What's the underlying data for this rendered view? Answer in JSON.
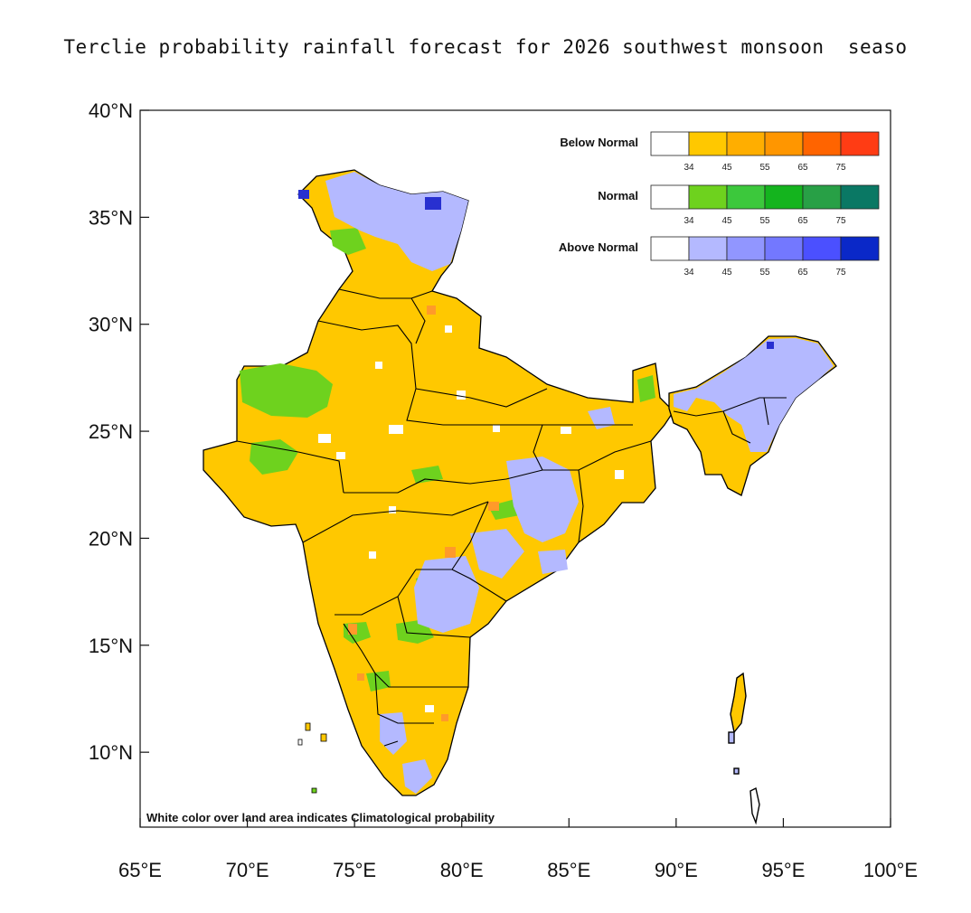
{
  "title": "Terclie probability rainfall forecast for 2026 southwest monsoon  seaso",
  "note": "White color over land area indicates Climatological probability",
  "axes": {
    "x_ticks": [
      "65°E",
      "70°E",
      "75°E",
      "80°E",
      "85°E",
      "90°E",
      "95°E",
      "100°E"
    ],
    "y_ticks": [
      "40°N",
      "35°N",
      "30°N",
      "25°N",
      "20°N",
      "15°N",
      "10°N"
    ],
    "lon_range": [
      65,
      100
    ],
    "lat_range": [
      6.5,
      40
    ]
  },
  "legend": [
    {
      "label": "Below Normal",
      "colors": [
        "#ffffff",
        "#ffc800",
        "#ffae00",
        "#ff9600",
        "#ff6400",
        "#ff3c14"
      ],
      "ticks": [
        "34",
        "45",
        "55",
        "65",
        "75"
      ]
    },
    {
      "label": "Normal",
      "colors": [
        "#ffffff",
        "#6ed21e",
        "#3cc83c",
        "#14b41e",
        "#28a046",
        "#0a7864"
      ],
      "ticks": [
        "34",
        "45",
        "55",
        "65",
        "75"
      ]
    },
    {
      "label": "Above Normal",
      "colors": [
        "#ffffff",
        "#b4b9ff",
        "#9196ff",
        "#7378ff",
        "#4b50ff",
        "#0a28c8"
      ],
      "ticks": [
        "34",
        "45",
        "55",
        "65",
        "75"
      ]
    }
  ],
  "map_colors": {
    "below": "#ffc800",
    "below_high": "#ff9a2a",
    "normal": "#6ed21e",
    "above": "#b4b9ff",
    "above_high": "#2830d0",
    "border": "#000000"
  }
}
